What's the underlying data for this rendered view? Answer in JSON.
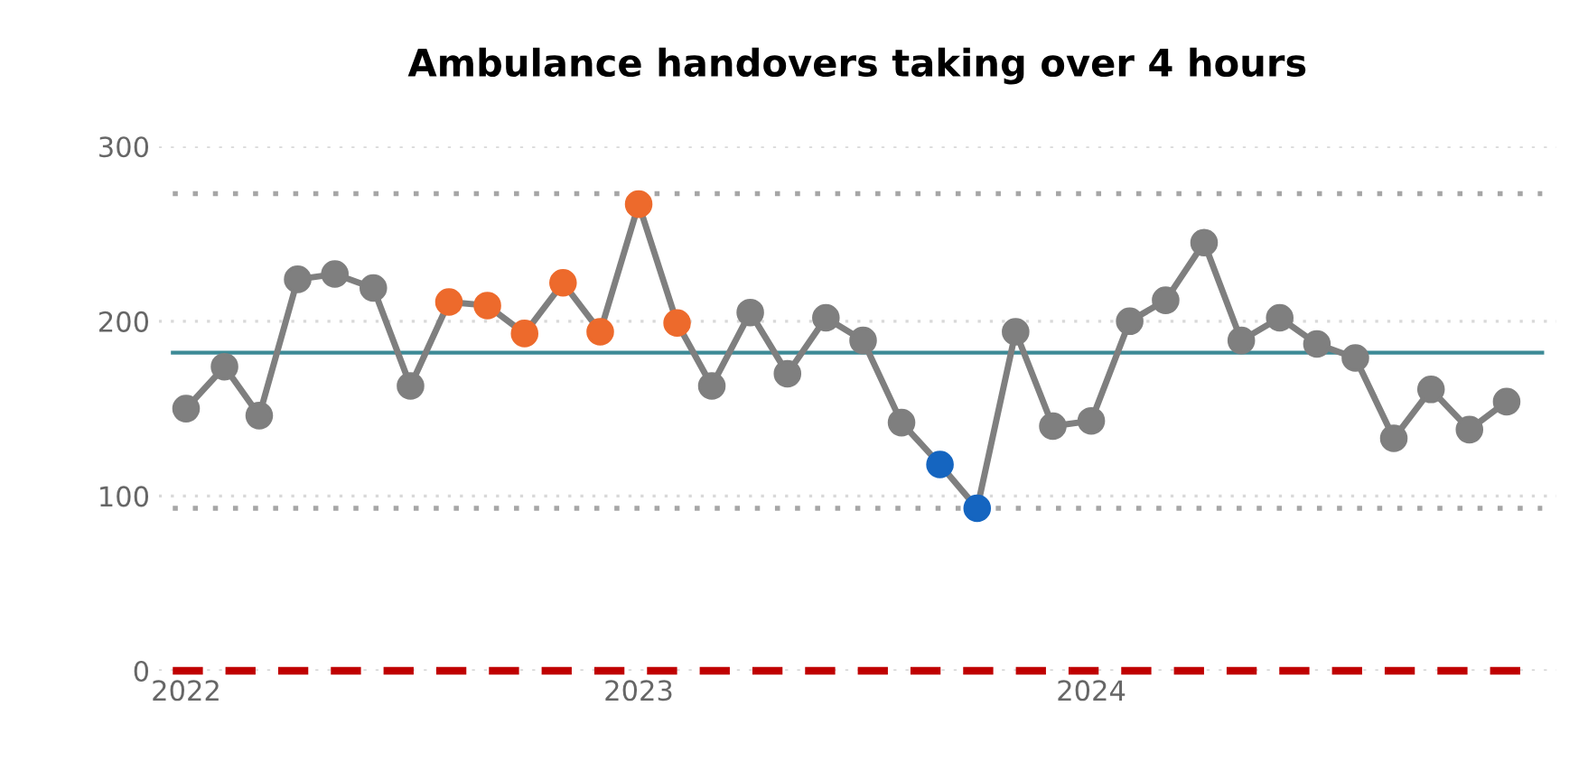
{
  "chart_data": {
    "type": "line",
    "title": "Ambulance handovers taking over 4 hours",
    "x": [
      "2022-01",
      "2022-02",
      "2022-03",
      "2022-04",
      "2022-05",
      "2022-06",
      "2022-07",
      "2022-08",
      "2022-09",
      "2022-10",
      "2022-11",
      "2022-12",
      "2023-01",
      "2023-02",
      "2023-03",
      "2023-04",
      "2023-05",
      "2023-06",
      "2023-07",
      "2023-08",
      "2023-09",
      "2023-10",
      "2023-11",
      "2023-12",
      "2024-01",
      "2024-02",
      "2024-03",
      "2024-04",
      "2024-05",
      "2024-06",
      "2024-07",
      "2024-08",
      "2024-09",
      "2024-10",
      "2024-11",
      "2024-12"
    ],
    "series": [
      {
        "color": "#7f7f7f",
        "values": [
          150,
          174,
          146,
          224,
          227,
          219,
          163,
          211,
          209,
          193,
          222,
          194,
          267,
          199,
          163,
          205,
          170,
          202,
          189,
          142,
          118,
          93,
          194,
          140,
          143,
          200,
          212,
          245,
          189,
          202,
          187,
          179,
          133,
          161,
          138,
          154
        ],
        "colors": [
          "#7f7f7f",
          "#7f7f7f",
          "#7f7f7f",
          "#7f7f7f",
          "#7f7f7f",
          "#7f7f7f",
          "#7f7f7f",
          "#ed6a2c",
          "#ed6a2c",
          "#ed6a2c",
          "#ed6a2c",
          "#ed6a2c",
          "#ed6a2c",
          "#ed6a2c",
          "#7f7f7f",
          "#7f7f7f",
          "#7f7f7f",
          "#7f7f7f",
          "#7f7f7f",
          "#7f7f7f",
          "#1565c0",
          "#1565c0",
          "#7f7f7f",
          "#7f7f7f",
          "#7f7f7f",
          "#7f7f7f",
          "#7f7f7f",
          "#7f7f7f",
          "#7f7f7f",
          "#7f7f7f",
          "#7f7f7f",
          "#7f7f7f",
          "#7f7f7f",
          "#7f7f7f",
          "#7f7f7f",
          "#7f7f7f"
        ]
      }
    ],
    "ref_lines": [
      {
        "axis": "y",
        "value": 182,
        "color": "#3d8a96",
        "line_style": "solid"
      },
      {
        "axis": "y",
        "value": 273,
        "color": "#a6a6a6",
        "line_style": "dotted"
      },
      {
        "axis": "y",
        "value": 93,
        "color": "#a6a6a6",
        "line_style": "dotted"
      },
      {
        "axis": "y",
        "value": 0,
        "color": "#c00000",
        "line_style": "dashed"
      }
    ],
    "xlim": [
      "2021-12-10",
      "2025-01-10"
    ],
    "xticks": [
      {
        "value": "2022-01",
        "label": "2022"
      },
      {
        "value": "2023-01",
        "label": "2023"
      },
      {
        "value": "2024-01",
        "label": "2024"
      }
    ],
    "ylim": [
      0,
      300
    ],
    "yticks": [
      0,
      100,
      200,
      300
    ],
    "grid": "y",
    "marker": "circle",
    "line_style": "solid"
  }
}
